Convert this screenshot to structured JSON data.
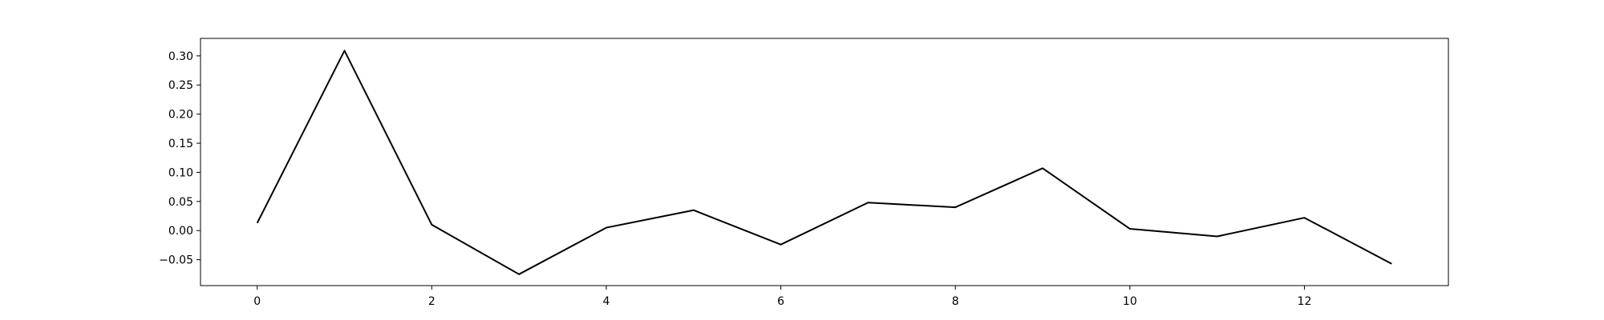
{
  "chart_data": {
    "type": "line",
    "title": "",
    "xlabel": "",
    "ylabel": "",
    "xlim": [
      -0.65,
      13.65
    ],
    "ylim": [
      -0.0945,
      0.33
    ],
    "xticks": [
      0,
      2,
      4,
      6,
      8,
      10,
      12
    ],
    "xtick_labels": [
      "0",
      "2",
      "4",
      "6",
      "8",
      "10",
      "12"
    ],
    "yticks": [
      -0.05,
      0.0,
      0.05,
      0.1,
      0.15,
      0.2,
      0.25,
      0.3
    ],
    "ytick_labels": [
      "−0.05",
      "0.00",
      "0.05",
      "0.10",
      "0.15",
      "0.20",
      "0.25",
      "0.30"
    ],
    "grid": false,
    "series": [
      {
        "color": "#000000",
        "x": [
          0,
          1,
          2,
          3,
          4,
          5,
          6,
          7,
          8,
          9,
          10,
          11,
          12,
          13
        ],
        "y": [
          0.013,
          0.309,
          0.01,
          -0.075,
          0.005,
          0.035,
          -0.024,
          0.048,
          0.04,
          0.107,
          0.003,
          -0.01,
          0.022,
          -0.057
        ]
      }
    ]
  }
}
